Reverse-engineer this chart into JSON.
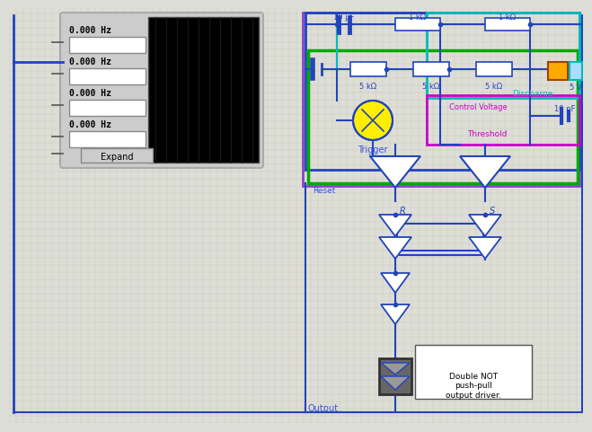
{
  "bg_color": "#deded8",
  "grid_color": "#c8c8b0",
  "wire_blue": "#2244bb",
  "wire_green": "#00aa00",
  "wire_cyan": "#00bbbb",
  "wire_magenta": "#cc00cc",
  "wire_purple": "#8844cc",
  "freq_labels": [
    "0.000 Hz",
    "0.000 Hz",
    "0.000 Hz",
    "0.000 Hz"
  ],
  "component_labels": {
    "cap_top": "10 μF",
    "res_top1": "1 kΩ",
    "res_top2": "1 kΩ",
    "res_mid1": "5 kΩ",
    "res_mid2": "5 kΩ",
    "res_mid3": "5 kΩ",
    "voltage": "5 V",
    "discharge": "Discharge",
    "control_voltage": "Control Voltage",
    "cap_right": "10 nF",
    "threshold": "Threshold",
    "trigger": "Trigger",
    "reset": "Reset",
    "output": "Output",
    "double_not": "Double NOT\npush-pull\noutput driver."
  }
}
